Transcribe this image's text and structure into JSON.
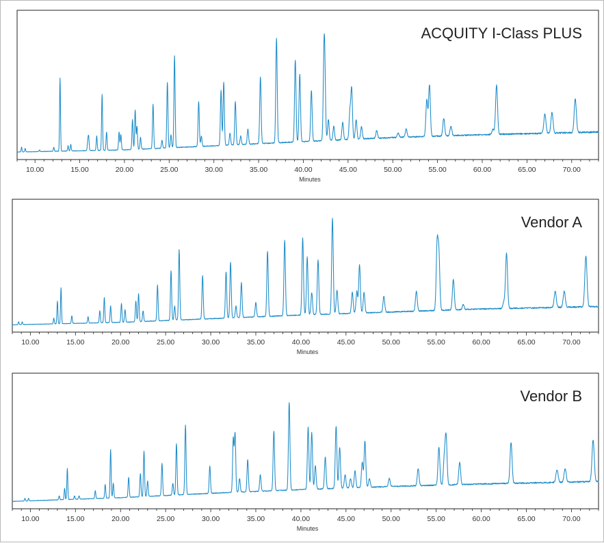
{
  "chart_data": [
    {
      "type": "line",
      "title": "ACQUITY I-Class PLUS",
      "xlabel": "Minutes",
      "ylabel": "",
      "xlim": [
        8.0,
        73.0
      ],
      "ylim": [
        0,
        100
      ],
      "xticks": [
        "10.00",
        "15.00",
        "20.00",
        "25.00",
        "30.00",
        "35.00",
        "40.00",
        "45.00",
        "50.00",
        "55.00",
        "60.00",
        "65.00",
        "70.00"
      ],
      "color": "#1a8ac8",
      "baseline": [
        [
          8.0,
          1.5
        ],
        [
          20.0,
          3.0
        ],
        [
          30.0,
          6.0
        ],
        [
          40.0,
          9.0
        ],
        [
          50.0,
          12.0
        ],
        [
          60.0,
          14.0
        ],
        [
          70.0,
          15.5
        ],
        [
          73.0,
          16.0
        ]
      ],
      "peaks": [
        [
          8.5,
          5
        ],
        [
          8.9,
          4
        ],
        [
          10.5,
          3
        ],
        [
          12.1,
          5
        ],
        [
          12.8,
          55
        ],
        [
          13.7,
          6
        ],
        [
          14.0,
          7
        ],
        [
          15.9,
          9
        ],
        [
          16.0,
          12
        ],
        [
          16.9,
          13
        ],
        [
          17.5,
          43
        ],
        [
          18.0,
          16
        ],
        [
          19.4,
          16
        ],
        [
          19.6,
          14
        ],
        [
          20.9,
          25
        ],
        [
          21.2,
          32
        ],
        [
          21.4,
          20
        ],
        [
          21.8,
          12
        ],
        [
          23.2,
          36
        ],
        [
          24.2,
          10
        ],
        [
          24.8,
          52
        ],
        [
          25.2,
          14
        ],
        [
          25.6,
          71
        ],
        [
          28.3,
          38
        ],
        [
          28.6,
          13
        ],
        [
          30.8,
          46
        ],
        [
          31.1,
          52
        ],
        [
          31.8,
          15
        ],
        [
          32.4,
          38
        ],
        [
          33.0,
          13
        ],
        [
          33.8,
          18
        ],
        [
          35.2,
          56
        ],
        [
          37.0,
          84
        ],
        [
          39.1,
          68
        ],
        [
          39.6,
          58
        ],
        [
          40.9,
          46
        ],
        [
          42.3,
          59
        ],
        [
          42.4,
          52
        ],
        [
          42.8,
          25
        ],
        [
          43.4,
          20
        ],
        [
          44.4,
          23
        ],
        [
          45.2,
          30
        ],
        [
          45.4,
          47
        ],
        [
          45.9,
          25
        ],
        [
          46.5,
          20
        ],
        [
          48.2,
          17
        ],
        [
          50.6,
          15
        ],
        [
          51.5,
          18
        ],
        [
          53.8,
          39
        ],
        [
          54.1,
          50
        ],
        [
          55.7,
          26
        ],
        [
          56.5,
          20
        ],
        [
          61.2,
          18
        ],
        [
          61.6,
          50
        ],
        [
          67.0,
          29
        ],
        [
          67.8,
          30
        ],
        [
          70.4,
          40
        ]
      ]
    },
    {
      "type": "line",
      "title": "Vendor A",
      "xlabel": "Minutes",
      "ylabel": "",
      "xlim": [
        8.0,
        73.0
      ],
      "ylim": [
        0,
        100
      ],
      "xticks": [
        "10.00",
        "15.00",
        "20.00",
        "25.00",
        "30.00",
        "35.00",
        "40.00",
        "45.00",
        "50.00",
        "55.00",
        "60.00",
        "65.00",
        "70.00"
      ],
      "color": "#1a8ac8",
      "baseline": [
        [
          8.0,
          1.5
        ],
        [
          20.0,
          3.5
        ],
        [
          30.0,
          6.5
        ],
        [
          40.0,
          9.5
        ],
        [
          50.0,
          12.0
        ],
        [
          60.0,
          14.5
        ],
        [
          70.0,
          16.0
        ],
        [
          73.0,
          16.5
        ]
      ],
      "peaks": [
        [
          8.7,
          4
        ],
        [
          9.1,
          4
        ],
        [
          12.6,
          7
        ],
        [
          13.0,
          21
        ],
        [
          13.4,
          32
        ],
        [
          14.6,
          9
        ],
        [
          16.4,
          8
        ],
        [
          17.7,
          13
        ],
        [
          18.2,
          24
        ],
        [
          18.9,
          17
        ],
        [
          20.1,
          19
        ],
        [
          20.5,
          14
        ],
        [
          21.7,
          21
        ],
        [
          22.0,
          27
        ],
        [
          22.5,
          13
        ],
        [
          24.1,
          34
        ],
        [
          25.6,
          46
        ],
        [
          26.0,
          17
        ],
        [
          26.5,
          63
        ],
        [
          29.1,
          42
        ],
        [
          31.7,
          45
        ],
        [
          32.2,
          53
        ],
        [
          32.8,
          17
        ],
        [
          33.4,
          36
        ],
        [
          35.0,
          20
        ],
        [
          36.3,
          62
        ],
        [
          38.2,
          71
        ],
        [
          40.2,
          73
        ],
        [
          40.7,
          57
        ],
        [
          41.2,
          28
        ],
        [
          41.9,
          55
        ],
        [
          43.5,
          89
        ],
        [
          44.0,
          30
        ],
        [
          45.7,
          28
        ],
        [
          46.2,
          29
        ],
        [
          46.5,
          51
        ],
        [
          47.0,
          28
        ],
        [
          49.2,
          25
        ],
        [
          52.8,
          29
        ],
        [
          55.1,
          66
        ],
        [
          55.3,
          58
        ],
        [
          56.9,
          39
        ],
        [
          58.0,
          18
        ],
        [
          62.5,
          20
        ],
        [
          62.8,
          60
        ],
        [
          68.2,
          29
        ],
        [
          69.2,
          29
        ],
        [
          71.6,
          58
        ]
      ]
    },
    {
      "type": "line",
      "title": "Vendor B",
      "xlabel": "Minutes",
      "ylabel": "",
      "xlim": [
        8.0,
        73.0
      ],
      "ylim": [
        0,
        100
      ],
      "xticks": [
        "10.00",
        "15.00",
        "20.00",
        "25.00",
        "30.00",
        "35.00",
        "40.00",
        "45.00",
        "50.00",
        "55.00",
        "60.00",
        "65.00",
        "70.00"
      ],
      "color": "#1a8ac8",
      "baseline": [
        [
          8.0,
          1.5
        ],
        [
          20.0,
          4.5
        ],
        [
          30.0,
          8.0
        ],
        [
          40.0,
          11.0
        ],
        [
          50.0,
          13.5
        ],
        [
          60.0,
          15.5
        ],
        [
          70.0,
          17.0
        ],
        [
          73.0,
          17.5
        ]
      ],
      "peaks": [
        [
          9.4,
          4
        ],
        [
          9.8,
          4
        ],
        [
          13.2,
          6
        ],
        [
          13.8,
          12
        ],
        [
          14.1,
          28
        ],
        [
          14.9,
          6
        ],
        [
          15.4,
          6
        ],
        [
          17.2,
          10
        ],
        [
          18.3,
          15
        ],
        [
          18.9,
          43
        ],
        [
          19.2,
          16
        ],
        [
          20.9,
          21
        ],
        [
          22.2,
          24
        ],
        [
          22.6,
          42
        ],
        [
          23.0,
          18
        ],
        [
          24.6,
          32
        ],
        [
          25.8,
          16
        ],
        [
          26.2,
          48
        ],
        [
          27.2,
          63
        ],
        [
          29.9,
          30
        ],
        [
          32.5,
          52
        ],
        [
          32.7,
          56
        ],
        [
          33.2,
          20
        ],
        [
          34.1,
          35
        ],
        [
          35.5,
          23
        ],
        [
          37.0,
          58
        ],
        [
          38.7,
          81
        ],
        [
          40.8,
          61
        ],
        [
          41.2,
          57
        ],
        [
          41.6,
          30
        ],
        [
          42.7,
          37
        ],
        [
          43.9,
          62
        ],
        [
          44.3,
          45
        ],
        [
          44.9,
          23
        ],
        [
          45.5,
          20
        ],
        [
          46.0,
          26
        ],
        [
          46.8,
          33
        ],
        [
          47.1,
          50
        ],
        [
          47.6,
          20
        ],
        [
          49.8,
          20
        ],
        [
          53.0,
          28
        ],
        [
          55.3,
          45
        ],
        [
          55.9,
          36
        ],
        [
          56.1,
          53
        ],
        [
          57.6,
          33
        ],
        [
          63.3,
          49
        ],
        [
          68.4,
          27
        ],
        [
          69.3,
          28
        ],
        [
          72.4,
          51
        ]
      ]
    }
  ]
}
